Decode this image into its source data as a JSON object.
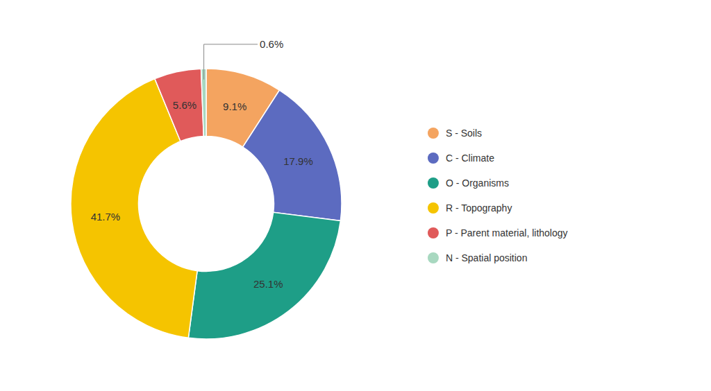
{
  "chart_data": {
    "type": "pie",
    "categories": [
      "S - Soils",
      "C - Climate",
      "O - Organisms",
      "R - Topography",
      "P - Parent material, lithology",
      "N - Spatial position"
    ],
    "values": [
      9.1,
      17.9,
      25.1,
      41.7,
      5.6,
      0.6
    ],
    "value_labels": [
      "9.1%",
      "17.9%",
      "25.1%",
      "41.7%",
      "5.6%",
      "0.6%"
    ],
    "colors": [
      "#F4A460",
      "#5C6BC0",
      "#1E9E87",
      "#F5C400",
      "#E05A5A",
      "#A8D8C0"
    ],
    "data_labels": true,
    "legend": "right"
  }
}
